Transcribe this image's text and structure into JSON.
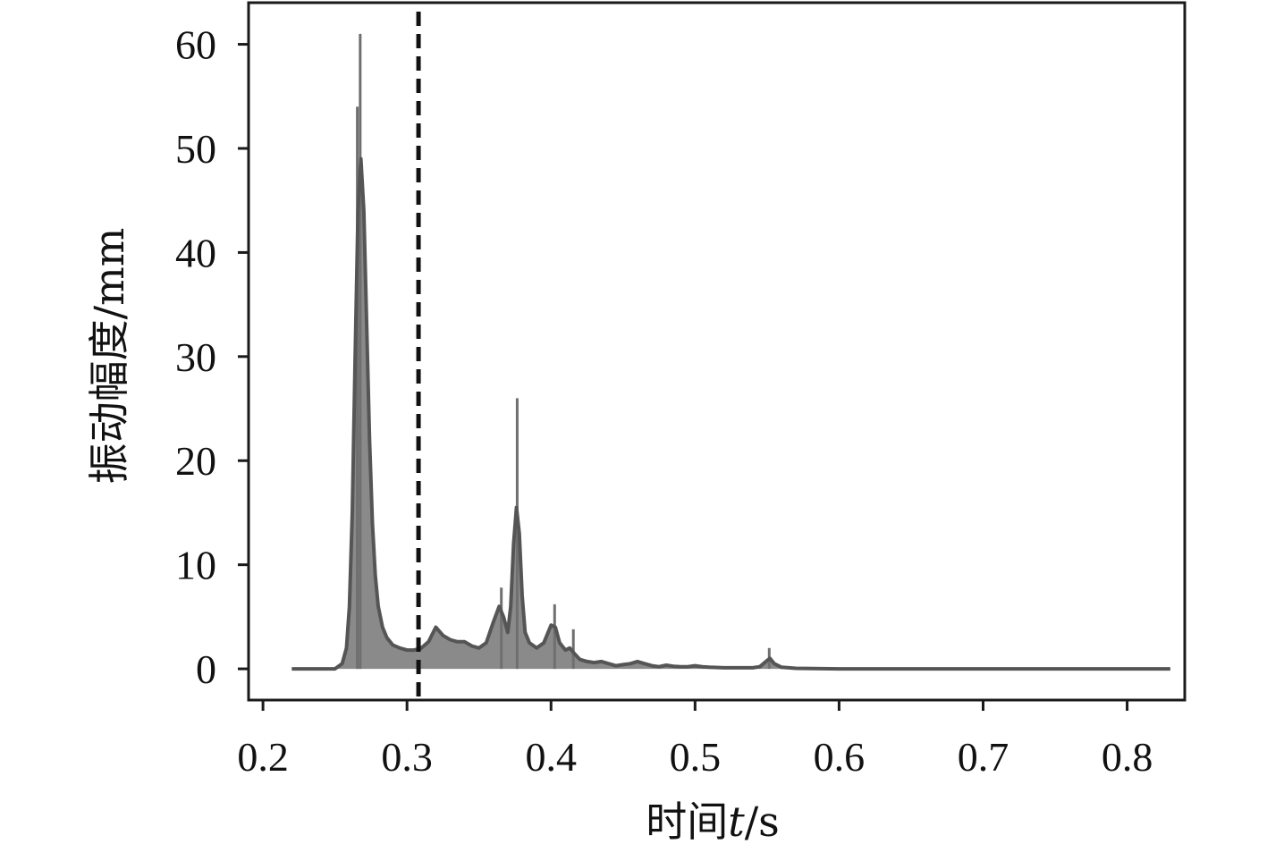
{
  "chart_data": {
    "type": "line",
    "title": "",
    "xlabel_cn": "时间",
    "xlabel_var": "t",
    "xlabel_unit": "/s",
    "ylabel": "振动幅度/mm",
    "xlim": [
      0.19,
      0.84
    ],
    "ylim": [
      -3,
      64
    ],
    "xticks": [
      0.2,
      0.3,
      0.4,
      0.5,
      0.6,
      0.7,
      0.8
    ],
    "xtick_labels": [
      "0.2",
      "0.3",
      "0.4",
      "0.5",
      "0.6",
      "0.7",
      "0.8"
    ],
    "yticks": [
      0,
      10,
      20,
      30,
      40,
      50,
      60
    ],
    "ytick_labels": [
      "0",
      "10",
      "20",
      "30",
      "40",
      "50",
      "60"
    ],
    "grid": false,
    "reference_line_x": 0.308,
    "series": [
      {
        "style": "envelope",
        "x": [
          0.22,
          0.25,
          0.255,
          0.258,
          0.26,
          0.262,
          0.264,
          0.266,
          0.268,
          0.27,
          0.272,
          0.274,
          0.276,
          0.278,
          0.28,
          0.283,
          0.286,
          0.29,
          0.295,
          0.3,
          0.305,
          0.31,
          0.315,
          0.32,
          0.325,
          0.33,
          0.335,
          0.34,
          0.345,
          0.35,
          0.355,
          0.36,
          0.364,
          0.367,
          0.37,
          0.372,
          0.374,
          0.376,
          0.378,
          0.38,
          0.382,
          0.385,
          0.39,
          0.395,
          0.4,
          0.403,
          0.406,
          0.41,
          0.413,
          0.416,
          0.42,
          0.425,
          0.43,
          0.435,
          0.44,
          0.445,
          0.45,
          0.455,
          0.46,
          0.465,
          0.47,
          0.475,
          0.48,
          0.485,
          0.49,
          0.495,
          0.5,
          0.505,
          0.51,
          0.52,
          0.53,
          0.54,
          0.545,
          0.55,
          0.552,
          0.555,
          0.56,
          0.57,
          0.6,
          0.7,
          0.83
        ],
        "y": [
          0,
          0,
          0.5,
          2,
          6,
          15,
          30,
          44,
          49,
          44,
          33,
          22,
          14,
          9,
          6,
          4,
          3,
          2.3,
          2,
          1.8,
          1.8,
          2,
          2.6,
          4,
          3.2,
          2.8,
          2.6,
          2.6,
          2.2,
          2,
          2.5,
          4.5,
          6,
          5,
          3.5,
          6,
          12,
          15.5,
          13,
          7,
          3.5,
          2.5,
          2,
          2.5,
          4.2,
          4,
          2.5,
          1.8,
          2,
          1.5,
          0.9,
          0.7,
          0.6,
          0.7,
          0.5,
          0.3,
          0.4,
          0.5,
          0.7,
          0.5,
          0.3,
          0.2,
          0.35,
          0.25,
          0.2,
          0.2,
          0.3,
          0.2,
          0.15,
          0.1,
          0.1,
          0.1,
          0.2,
          0.8,
          1,
          0.5,
          0.15,
          0.05,
          0,
          0,
          0
        ]
      },
      {
        "style": "spikes",
        "x": [
          0.2655,
          0.2675,
          0.3765,
          0.3655,
          0.4025,
          0.4155,
          0.5515
        ],
        "y": [
          54,
          61,
          26,
          7.8,
          6.2,
          3.8,
          2
        ]
      }
    ]
  },
  "colors": {
    "fill": "#8a8a8a",
    "envelope": "#555555",
    "spike": "#6f6f6f",
    "axes": "#1a1a1a",
    "reference_line": "#111111"
  }
}
